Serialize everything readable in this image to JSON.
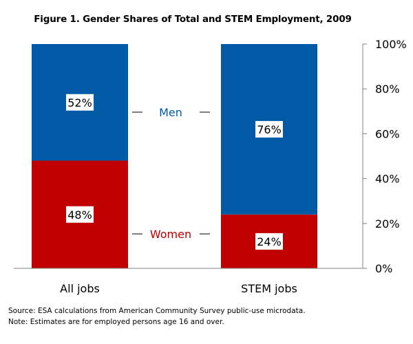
{
  "chart_data": {
    "type": "bar",
    "stacked": true,
    "percent": true,
    "title": "Figure 1. Gender Shares of Total and STEM Employment, 2009",
    "categories": [
      "All jobs",
      "STEM jobs"
    ],
    "series": [
      {
        "name": "Women",
        "values": [
          48,
          24
        ],
        "labels": [
          "48%",
          "24%"
        ],
        "color": "#c00000"
      },
      {
        "name": "Men",
        "values": [
          52,
          76
        ],
        "labels": [
          "52%",
          "76%"
        ],
        "color": "#005aa6"
      }
    ],
    "ylim": [
      0,
      100
    ],
    "yticks": [
      0,
      20,
      40,
      60,
      80,
      100
    ],
    "ytick_labels": [
      "0%",
      "20%",
      "40%",
      "60%",
      "80%",
      "100%"
    ],
    "yaxis_position": "right",
    "legend": "center, between bars",
    "grid": false
  },
  "footnotes": {
    "source": "Source: ESA calculations from American Community Survey public-use microdata.",
    "note": "Note:  Estimates are for employed persons age 16 and over."
  }
}
